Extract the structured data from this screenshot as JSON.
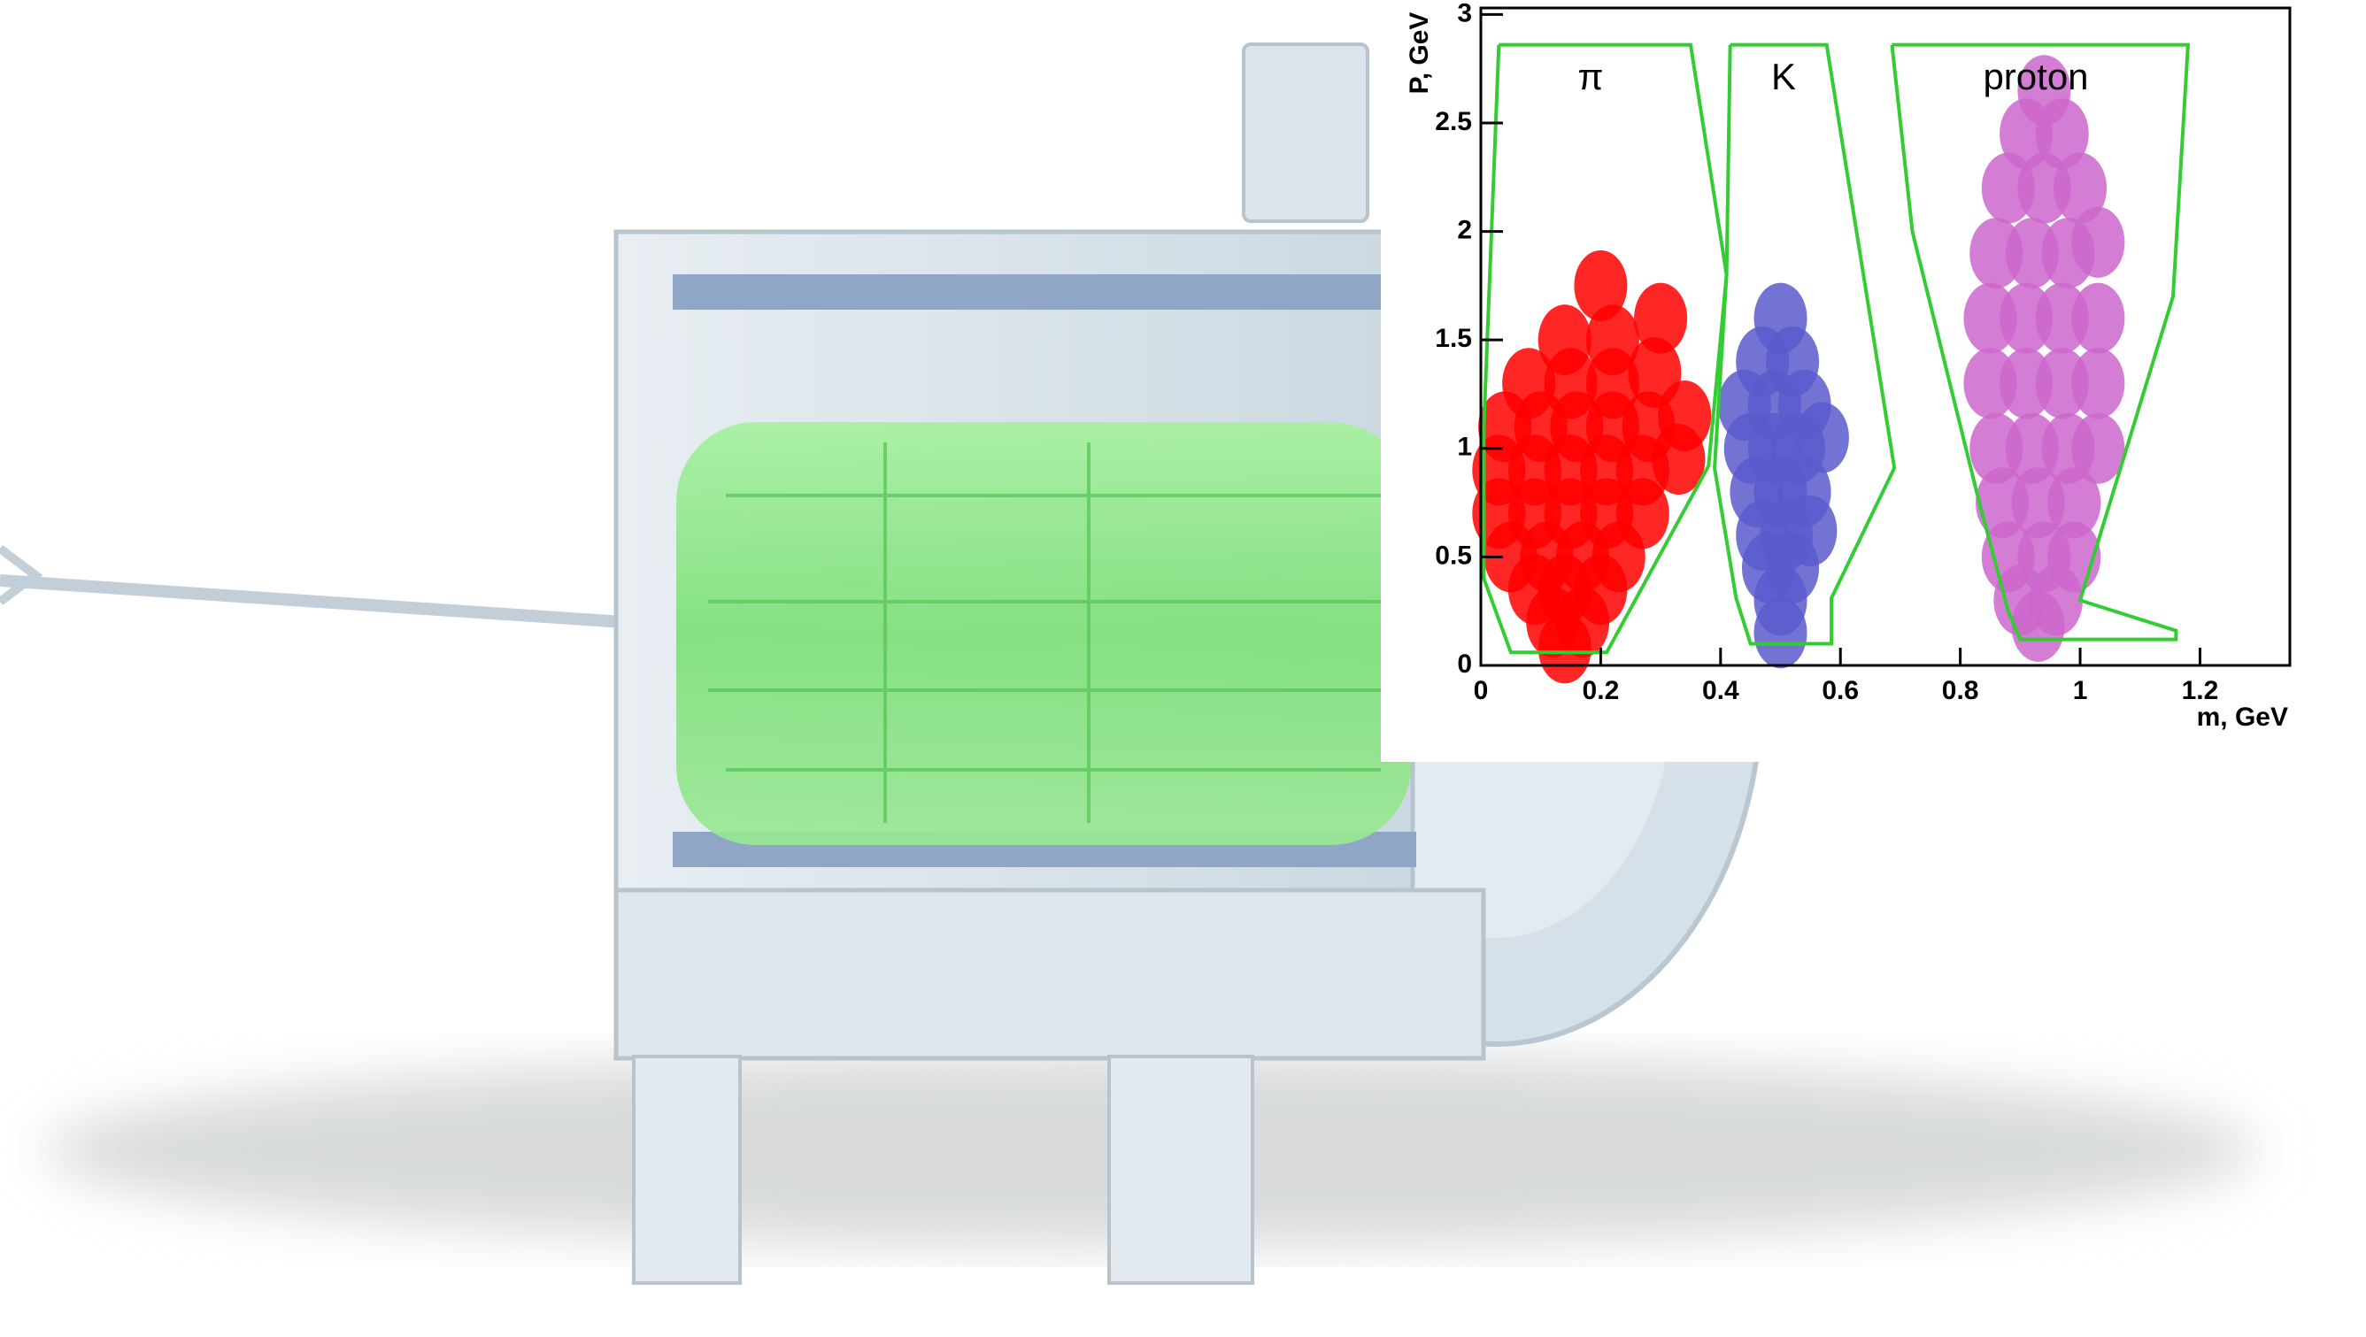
{
  "chart_data": {
    "type": "scatter",
    "xlabel": "m, GeV",
    "ylabel": "P, GeV",
    "xlim": [
      0,
      1.35
    ],
    "ylim": [
      0,
      3.03
    ],
    "xticks": [
      0,
      0.2,
      0.4,
      0.6,
      0.8,
      1,
      1.2
    ],
    "yticks": [
      0,
      0.5,
      1,
      1.5,
      2,
      2.5,
      3
    ],
    "annotations": [
      "π",
      "K",
      "proton"
    ],
    "series": [
      {
        "color": "#ff0000",
        "x": [
          0.14,
          0.12,
          0.17,
          0.09,
          0.14,
          0.2,
          0.05,
          0.11,
          0.17,
          0.23,
          0.03,
          0.09,
          0.15,
          0.21,
          0.27,
          0.03,
          0.09,
          0.15,
          0.21,
          0.27,
          0.33,
          0.04,
          0.1,
          0.16,
          0.22,
          0.28,
          0.34,
          0.08,
          0.15,
          0.22,
          0.29,
          0.14,
          0.22,
          0.3,
          0.2
        ],
        "y": [
          0.08,
          0.2,
          0.2,
          0.35,
          0.35,
          0.35,
          0.5,
          0.5,
          0.5,
          0.5,
          0.7,
          0.7,
          0.7,
          0.7,
          0.7,
          0.9,
          0.9,
          0.9,
          0.9,
          0.9,
          0.95,
          1.1,
          1.1,
          1.1,
          1.1,
          1.1,
          1.15,
          1.3,
          1.3,
          1.3,
          1.35,
          1.5,
          1.5,
          1.6,
          1.75
        ]
      },
      {
        "color": "#5a5acd",
        "x": [
          0.5,
          0.5,
          0.48,
          0.52,
          0.47,
          0.51,
          0.55,
          0.46,
          0.5,
          0.54,
          0.45,
          0.49,
          0.53,
          0.57,
          0.44,
          0.49,
          0.54,
          0.47,
          0.52,
          0.5
        ],
        "y": [
          0.15,
          0.3,
          0.45,
          0.45,
          0.6,
          0.6,
          0.62,
          0.8,
          0.8,
          0.8,
          1.0,
          1.0,
          1.0,
          1.05,
          1.2,
          1.2,
          1.2,
          1.4,
          1.4,
          1.6
        ]
      },
      {
        "color": "#cc66cc",
        "x": [
          0.93,
          0.9,
          0.96,
          0.88,
          0.94,
          0.99,
          0.87,
          0.93,
          0.99,
          0.86,
          0.92,
          0.98,
          1.03,
          0.85,
          0.91,
          0.97,
          1.03,
          0.85,
          0.91,
          0.97,
          1.03,
          0.86,
          0.92,
          0.98,
          1.03,
          0.88,
          0.94,
          1.0,
          0.91,
          0.97,
          0.94
        ],
        "y": [
          0.18,
          0.3,
          0.3,
          0.5,
          0.5,
          0.5,
          0.75,
          0.75,
          0.75,
          1.0,
          1.0,
          1.0,
          1.0,
          1.3,
          1.3,
          1.3,
          1.3,
          1.6,
          1.6,
          1.6,
          1.6,
          1.9,
          1.9,
          1.9,
          1.95,
          2.2,
          2.2,
          2.2,
          2.45,
          2.45,
          2.65
        ]
      }
    ],
    "cuts": [
      {
        "color": "#33cc33",
        "x": [
          0.03,
          0.35,
          0.41,
          0.38,
          0.21,
          0.05,
          0.005,
          0.005,
          0.03
        ],
        "y": [
          2.86,
          2.86,
          1.8,
          0.92,
          0.06,
          0.06,
          0.4,
          1.1,
          2.86
        ]
      },
      {
        "color": "#33cc33",
        "x": [
          0.416,
          0.577,
          0.69,
          0.585,
          0.585,
          0.45,
          0.426,
          0.39,
          0.41,
          0.416
        ],
        "y": [
          2.86,
          2.86,
          0.91,
          0.31,
          0.1,
          0.1,
          0.31,
          0.91,
          1.8,
          2.86
        ]
      },
      {
        "color": "#33cc33",
        "x": [
          0.686,
          0.72,
          0.83,
          0.88,
          0.9,
          1.16,
          1.16,
          1.0,
          1.155,
          1.18,
          0.686
        ],
        "y": [
          2.86,
          2.0,
          0.77,
          0.25,
          0.12,
          0.12,
          0.16,
          0.3,
          1.7,
          2.86,
          2.86
        ]
      }
    ]
  }
}
